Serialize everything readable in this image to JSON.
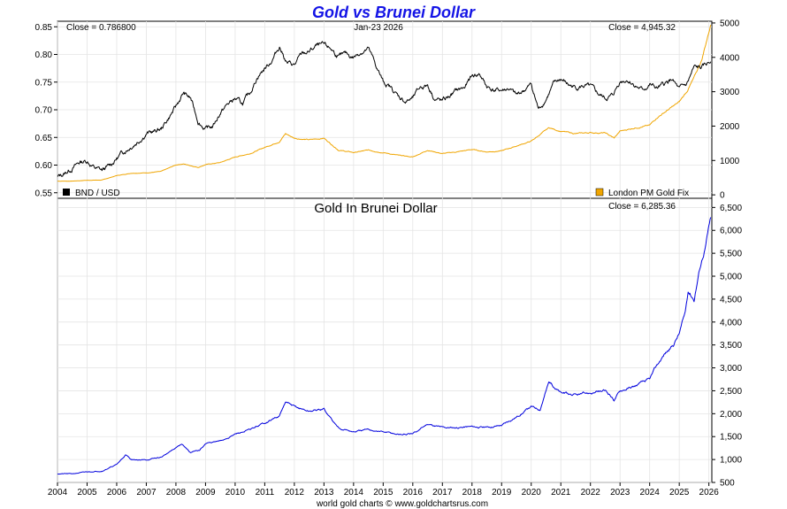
{
  "chart_data": [
    {
      "type": "line",
      "title": "Gold vs Brunei Dollar",
      "date_label": "Jan-23  2026",
      "left_close_label": "Close = 0.786800",
      "right_close_label": "Close = 4,945.32",
      "x_range": [
        2004,
        2026.1
      ],
      "y_left": {
        "range": [
          0.54,
          0.86
        ],
        "ticks": [
          0.55,
          0.6,
          0.65,
          0.7,
          0.75,
          0.8,
          0.85
        ],
        "tick_labels": [
          "0.55",
          "0.60",
          "0.65",
          "0.70",
          "0.75",
          "0.80",
          "0.85"
        ]
      },
      "y_right": {
        "range": [
          -100,
          5050
        ],
        "ticks": [
          0,
          1000,
          2000,
          3000,
          4000,
          5000
        ],
        "tick_labels": [
          "0",
          "1000",
          "2000",
          "3000",
          "4000",
          "5000"
        ]
      },
      "series": [
        {
          "name": "BND / USD",
          "color": "#000000",
          "axis": "left",
          "x": [
            2004.0,
            2004.25,
            2004.5,
            2004.75,
            2005.0,
            2005.25,
            2005.5,
            2005.75,
            2006.0,
            2006.25,
            2006.5,
            2006.75,
            2007.0,
            2007.25,
            2007.5,
            2007.75,
            2008.0,
            2008.25,
            2008.5,
            2008.75,
            2009.0,
            2009.25,
            2009.5,
            2009.75,
            2010.0,
            2010.25,
            2010.5,
            2010.75,
            2011.0,
            2011.25,
            2011.5,
            2011.75,
            2012.0,
            2012.25,
            2012.5,
            2012.75,
            2013.0,
            2013.25,
            2013.5,
            2013.75,
            2014.0,
            2014.25,
            2014.5,
            2014.75,
            2015.0,
            2015.25,
            2015.5,
            2015.75,
            2016.0,
            2016.25,
            2016.5,
            2016.75,
            2017.0,
            2017.25,
            2017.5,
            2017.75,
            2018.0,
            2018.25,
            2018.5,
            2018.75,
            2019.0,
            2019.25,
            2019.5,
            2019.75,
            2020.0,
            2020.25,
            2020.5,
            2020.75,
            2021.0,
            2021.25,
            2021.5,
            2021.75,
            2022.0,
            2022.25,
            2022.5,
            2022.75,
            2023.0,
            2023.25,
            2023.5,
            2023.75,
            2024.0,
            2024.25,
            2024.5,
            2024.75,
            2025.0,
            2025.25,
            2025.5,
            2025.75,
            2026.06
          ],
          "values": [
            0.578,
            0.585,
            0.595,
            0.605,
            0.608,
            0.595,
            0.59,
            0.598,
            0.612,
            0.625,
            0.635,
            0.645,
            0.658,
            0.66,
            0.665,
            0.685,
            0.705,
            0.73,
            0.72,
            0.68,
            0.665,
            0.67,
            0.695,
            0.71,
            0.72,
            0.71,
            0.73,
            0.76,
            0.775,
            0.79,
            0.815,
            0.785,
            0.78,
            0.8,
            0.805,
            0.815,
            0.815,
            0.81,
            0.795,
            0.8,
            0.795,
            0.805,
            0.81,
            0.78,
            0.75,
            0.74,
            0.725,
            0.715,
            0.72,
            0.74,
            0.745,
            0.72,
            0.715,
            0.725,
            0.735,
            0.74,
            0.76,
            0.765,
            0.742,
            0.735,
            0.735,
            0.738,
            0.725,
            0.735,
            0.745,
            0.7,
            0.72,
            0.745,
            0.755,
            0.745,
            0.74,
            0.743,
            0.74,
            0.728,
            0.72,
            0.725,
            0.752,
            0.755,
            0.745,
            0.735,
            0.745,
            0.738,
            0.745,
            0.755,
            0.735,
            0.745,
            0.775,
            0.775,
            0.7868
          ]
        },
        {
          "name": "London PM Gold Fix",
          "color": "#f0a500",
          "axis": "right",
          "x": [
            2004.0,
            2004.5,
            2005.0,
            2005.5,
            2006.0,
            2006.5,
            2007.0,
            2007.5,
            2008.0,
            2008.25,
            2008.75,
            2009.0,
            2009.5,
            2010.0,
            2010.5,
            2011.0,
            2011.5,
            2011.7,
            2012.0,
            2012.5,
            2013.0,
            2013.5,
            2014.0,
            2014.5,
            2015.0,
            2015.5,
            2016.0,
            2016.5,
            2017.0,
            2017.5,
            2018.0,
            2018.5,
            2019.0,
            2019.5,
            2020.0,
            2020.6,
            2021.0,
            2021.5,
            2022.0,
            2022.5,
            2022.8,
            2023.0,
            2023.5,
            2024.0,
            2024.25,
            2024.5,
            2025.0,
            2025.25,
            2025.5,
            2025.75,
            2026.06
          ],
          "values": [
            400,
            400,
            425,
            430,
            560,
            630,
            640,
            680,
            870,
            900,
            800,
            880,
            940,
            1100,
            1200,
            1380,
            1550,
            1780,
            1650,
            1600,
            1650,
            1300,
            1230,
            1300,
            1230,
            1150,
            1100,
            1300,
            1200,
            1250,
            1320,
            1250,
            1280,
            1420,
            1560,
            1950,
            1850,
            1780,
            1810,
            1800,
            1650,
            1850,
            1950,
            2020,
            2250,
            2400,
            2700,
            3000,
            3400,
            3900,
            4945
          ]
        }
      ]
    },
    {
      "type": "line",
      "title": "Gold In Brunei Dollar",
      "close_label": "Close = 6,285.36",
      "x_range": [
        2004,
        2026.1
      ],
      "y_range": [
        500,
        6700
      ],
      "y_ticks": [
        500,
        1000,
        1500,
        2000,
        2500,
        3000,
        3500,
        4000,
        4500,
        5000,
        5500,
        6000,
        6500
      ],
      "y_tick_labels": [
        "500",
        "1,000",
        "1,500",
        "2,000",
        "2,500",
        "3,000",
        "3,500",
        "4,000",
        "4,500",
        "5,000",
        "5,500",
        "6,000",
        "6,500"
      ],
      "x_ticks": [
        2004,
        2005,
        2006,
        2007,
        2008,
        2009,
        2010,
        2011,
        2012,
        2013,
        2014,
        2015,
        2016,
        2017,
        2018,
        2019,
        2020,
        2021,
        2022,
        2023,
        2024,
        2025,
        2026
      ],
      "x_tick_labels": [
        "2004",
        "2005",
        "2006",
        "2007",
        "2008",
        "2009",
        "2010",
        "2011",
        "2012",
        "2013",
        "2014",
        "2015",
        "2016",
        "2017",
        "2018",
        "2019",
        "2020",
        "2021",
        "2022",
        "2023",
        "2024",
        "2025",
        "2026"
      ],
      "series": [
        {
          "name": "Gold In Brunei Dollar",
          "color": "#0000dd",
          "x": [
            2004.0,
            2004.5,
            2005.0,
            2005.5,
            2006.0,
            2006.3,
            2006.5,
            2007.0,
            2007.5,
            2008.0,
            2008.2,
            2008.5,
            2008.8,
            2009.0,
            2009.5,
            2010.0,
            2010.5,
            2011.0,
            2011.5,
            2011.7,
            2012.0,
            2012.5,
            2013.0,
            2013.4,
            2013.5,
            2014.0,
            2014.5,
            2015.0,
            2015.5,
            2016.0,
            2016.5,
            2017.0,
            2017.5,
            2018.0,
            2018.5,
            2019.0,
            2019.5,
            2020.0,
            2020.3,
            2020.6,
            2021.0,
            2021.5,
            2022.0,
            2022.5,
            2022.8,
            2023.0,
            2023.5,
            2024.0,
            2024.2,
            2024.5,
            2024.8,
            2025.0,
            2025.2,
            2025.3,
            2025.5,
            2025.7,
            2025.9,
            2026.06
          ],
          "values": [
            690,
            690,
            730,
            750,
            890,
            1100,
            1000,
            990,
            1050,
            1250,
            1350,
            1150,
            1200,
            1350,
            1400,
            1550,
            1650,
            1800,
            1950,
            2250,
            2150,
            2050,
            2100,
            1750,
            1700,
            1600,
            1650,
            1600,
            1550,
            1550,
            1780,
            1700,
            1700,
            1720,
            1700,
            1750,
            1930,
            2150,
            2100,
            2700,
            2450,
            2400,
            2450,
            2500,
            2300,
            2500,
            2600,
            2750,
            3000,
            3300,
            3500,
            3750,
            4200,
            4700,
            4500,
            5200,
            5700,
            6285.36
          ]
        }
      ]
    }
  ],
  "legend": {
    "left": "BND / USD",
    "right": "London PM Gold Fix"
  },
  "footer": "world gold charts © www.goldchartsrus.com",
  "colors": {
    "title": "#1414e6",
    "bnd": "#000000",
    "gold_fix": "#f0a500",
    "gold_bnd": "#0000dd"
  }
}
